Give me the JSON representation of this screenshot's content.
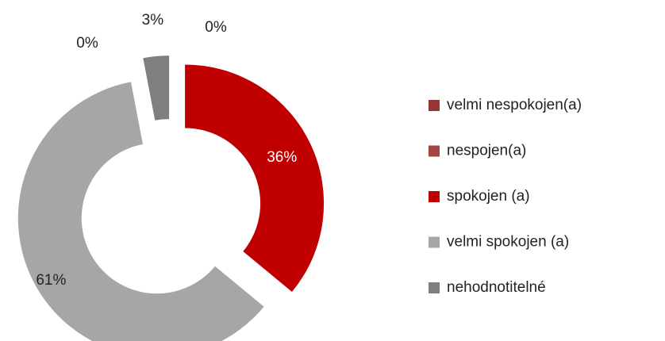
{
  "chart_data": {
    "type": "donut",
    "categories": [
      "velmi nespokojen(a)",
      "nespojen(a)",
      "spokojen (a)",
      "velmi spokojen  (a)",
      "nehodnotitelné"
    ],
    "values": [
      0,
      0,
      36,
      61,
      3
    ],
    "value_labels": [
      "0%",
      "0%",
      "36%",
      "61%",
      "3%"
    ],
    "colors": [
      "#953735",
      "#a34545",
      "#c00000",
      "#a6a6a6",
      "#7f7f7f"
    ],
    "legend": "right"
  }
}
